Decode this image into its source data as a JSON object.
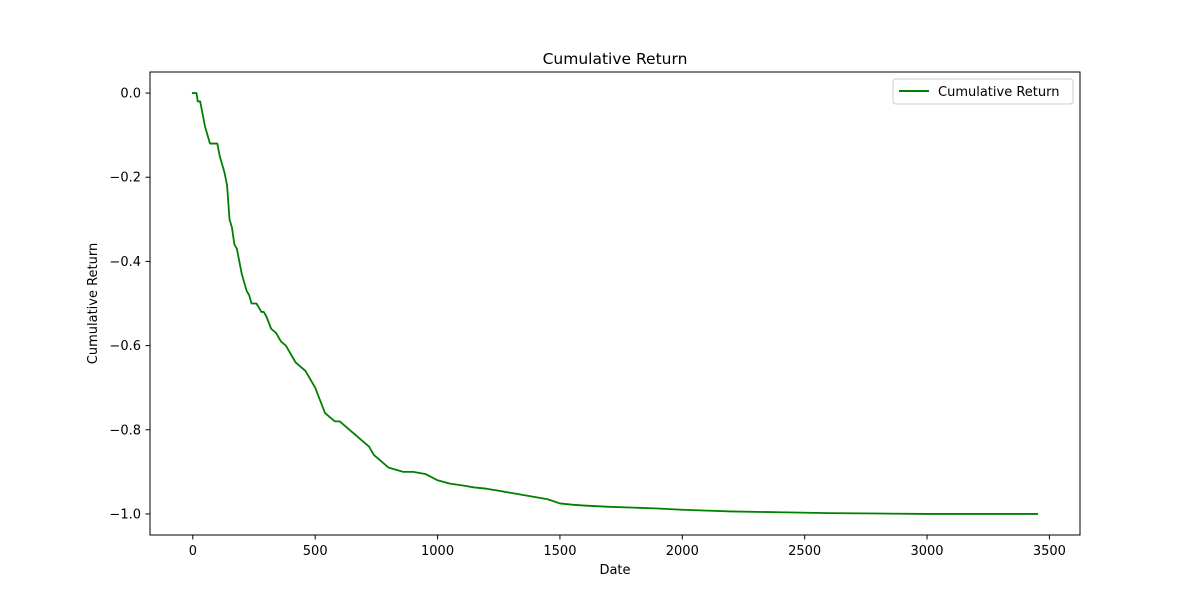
{
  "chart_data": {
    "type": "line",
    "title": "Cumulative Return",
    "xlabel": "Date",
    "ylabel": "Cumulative Return",
    "xlim": [
      -175,
      3625
    ],
    "ylim": [
      -1.05,
      0.05
    ],
    "xticks": [
      0,
      500,
      1000,
      1500,
      2000,
      2500,
      3000,
      3500
    ],
    "xtick_labels": [
      "0",
      "500",
      "1000",
      "1500",
      "2000",
      "2500",
      "3000",
      "3500"
    ],
    "yticks": [
      0.0,
      -0.2,
      -0.4,
      -0.6,
      -0.8,
      -1.0
    ],
    "ytick_labels": [
      "0.0",
      "−0.2",
      "−0.4",
      "−0.6",
      "−0.8",
      "−1.0"
    ],
    "grid": false,
    "legend_position": "top-right",
    "series": [
      {
        "name": "Cumulative Return",
        "color": "#008000",
        "x": [
          0,
          15,
          20,
          30,
          40,
          50,
          60,
          70,
          80,
          90,
          100,
          110,
          120,
          130,
          140,
          150,
          160,
          170,
          180,
          190,
          200,
          210,
          220,
          230,
          240,
          250,
          260,
          270,
          280,
          290,
          300,
          320,
          340,
          360,
          380,
          400,
          420,
          440,
          460,
          480,
          500,
          520,
          540,
          560,
          580,
          600,
          620,
          640,
          660,
          680,
          700,
          720,
          740,
          760,
          780,
          800,
          830,
          860,
          900,
          950,
          1000,
          1050,
          1100,
          1150,
          1200,
          1250,
          1300,
          1350,
          1400,
          1450,
          1500,
          1550,
          1600,
          1700,
          1800,
          1900,
          2000,
          2100,
          2200,
          2400,
          2600,
          2800,
          3000,
          3200,
          3450
        ],
        "y": [
          0.0,
          0.0,
          -0.02,
          -0.02,
          -0.05,
          -0.08,
          -0.1,
          -0.12,
          -0.12,
          -0.12,
          -0.12,
          -0.15,
          -0.17,
          -0.19,
          -0.22,
          -0.3,
          -0.32,
          -0.36,
          -0.37,
          -0.4,
          -0.43,
          -0.45,
          -0.47,
          -0.48,
          -0.5,
          -0.5,
          -0.5,
          -0.51,
          -0.52,
          -0.52,
          -0.53,
          -0.56,
          -0.57,
          -0.59,
          -0.6,
          -0.62,
          -0.64,
          -0.65,
          -0.66,
          -0.68,
          -0.7,
          -0.73,
          -0.76,
          -0.77,
          -0.78,
          -0.78,
          -0.79,
          -0.8,
          -0.81,
          -0.82,
          -0.83,
          -0.84,
          -0.86,
          -0.87,
          -0.88,
          -0.89,
          -0.895,
          -0.9,
          -0.9,
          -0.905,
          -0.92,
          -0.928,
          -0.932,
          -0.937,
          -0.94,
          -0.945,
          -0.95,
          -0.955,
          -0.96,
          -0.965,
          -0.975,
          -0.978,
          -0.98,
          -0.983,
          -0.985,
          -0.987,
          -0.99,
          -0.992,
          -0.994,
          -0.996,
          -0.998,
          -0.999,
          -1.0,
          -1.0,
          -1.0
        ]
      }
    ]
  }
}
